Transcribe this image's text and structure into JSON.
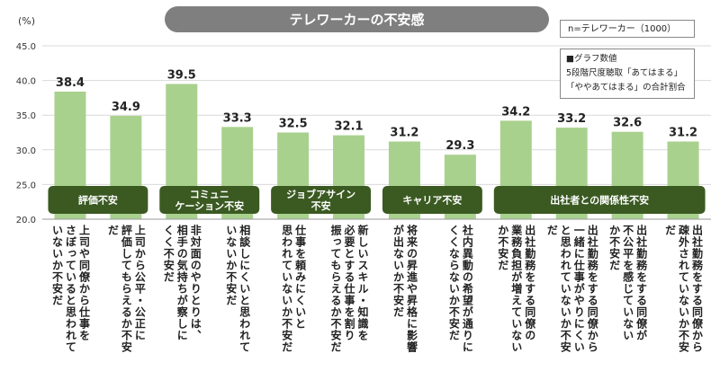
{
  "chart_data": {
    "type": "bar",
    "title": "テレワーカーの不安感",
    "ylabel": "(%)",
    "ylim": [
      20,
      45
    ],
    "yticks": [
      "20.0",
      "25.0",
      "30.0",
      "35.0",
      "40.0",
      "45.0"
    ],
    "bar_color": "#a9d18e",
    "group_color": "#3b5a22",
    "groups": [
      {
        "label": "評価不安",
        "start": 0,
        "end": 1
      },
      {
        "label": "コミュニ\nケーション不安",
        "start": 2,
        "end": 3
      },
      {
        "label": "ジョブアサイン\n不安",
        "start": 4,
        "end": 5
      },
      {
        "label": "キャリア不安",
        "start": 6,
        "end": 7
      },
      {
        "label": "出社者との関係性不安",
        "start": 8,
        "end": 11
      }
    ],
    "bars": [
      {
        "value": 38.4,
        "label": "38.4",
        "category": "上司や同僚から仕事を\nさぼっていると思われて\nいないか不安だ"
      },
      {
        "value": 34.9,
        "label": "34.9",
        "category": "上司から公平・公正に\n評価してもらえるか不安\nだ"
      },
      {
        "value": 39.5,
        "label": "39.5",
        "category": "非対面のやりとりは、\n相手の気持ちが察しに\nくく不安だ"
      },
      {
        "value": 33.3,
        "label": "33.3",
        "category": "相談しにくいと思われて\nいないか不安だ"
      },
      {
        "value": 32.5,
        "label": "32.5",
        "category": "仕事を頼みにくいと\n思われていないか不安だ"
      },
      {
        "value": 32.1,
        "label": "32.1",
        "category": "新しいスキル・知識を\n必要とする仕事を割り\n振ってもらえるか不安だ"
      },
      {
        "value": 31.2,
        "label": "31.2",
        "category": "将来の昇進や昇格に影響\nが出ないか不安だ"
      },
      {
        "value": 29.3,
        "label": "29.3",
        "category": "社内異動の希望が通りに\nくくならないか不安だ"
      },
      {
        "value": 34.2,
        "label": "34.2",
        "category": "出社勤務をする同僚の\n業務負担が増えていない\nか不安だ"
      },
      {
        "value": 33.2,
        "label": "33.2",
        "category": "出社勤務をする同僚から\n一緒に仕事がやりにくい\nと思われていないか不安\nだ"
      },
      {
        "value": 32.6,
        "label": "32.6",
        "category": "出社勤務をする同僚が\n不公平を感じていない\nか不安だ"
      },
      {
        "value": 31.2,
        "label": "31.2",
        "category": "出社勤務をする同僚から\n疎外されていないか不安\nだ"
      }
    ]
  },
  "legend": {
    "n_text": "n=テレワーカー（1000）",
    "note_line1": "■グラフ数値",
    "note_line2": "5段階尺度聴取「あてはまる」",
    "note_line3": "「ややあてはまる」の合計割合"
  }
}
